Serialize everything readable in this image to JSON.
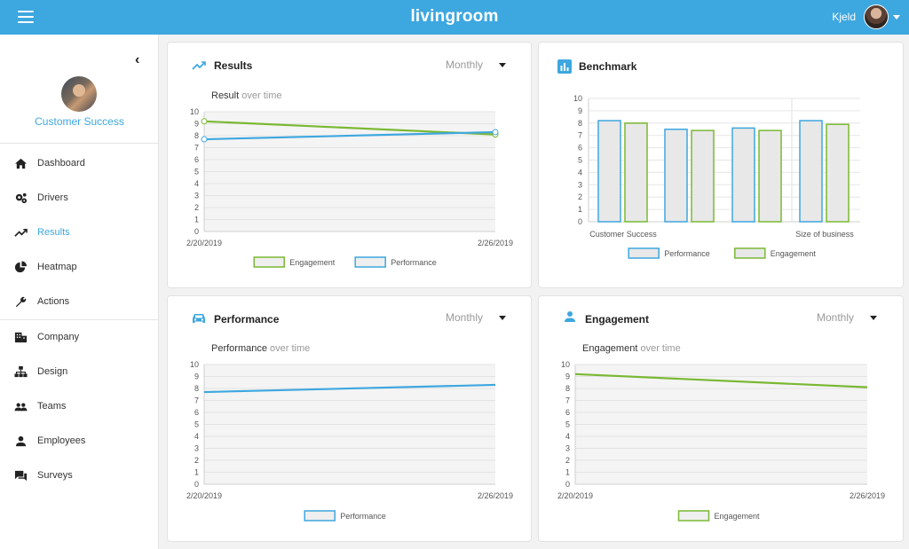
{
  "header": {
    "brand": "livingroom",
    "user_name": "Kjeld"
  },
  "sidebar": {
    "team_name": "Customer Success",
    "items": [
      {
        "label": "Dashboard",
        "icon": "home-icon"
      },
      {
        "label": "Drivers",
        "icon": "gears-icon"
      },
      {
        "label": "Results",
        "icon": "trending-up-icon",
        "active": true
      },
      {
        "label": "Heatmap",
        "icon": "pie-chart-icon"
      },
      {
        "label": "Actions",
        "icon": "wrench-icon"
      },
      {
        "label": "Company",
        "icon": "building-icon"
      },
      {
        "label": "Design",
        "icon": "org-chart-icon"
      },
      {
        "label": "Teams",
        "icon": "people-icon"
      },
      {
        "label": "Employees",
        "icon": "person-icon"
      },
      {
        "label": "Surveys",
        "icon": "chat-icon"
      }
    ]
  },
  "colors": {
    "accent": "#3da7df",
    "performance": "#3da7df",
    "engagement": "#7ab833",
    "plot_fill": "#f4f4f4"
  },
  "cards": {
    "results": {
      "title": "Results",
      "period": "Monthly",
      "subtitle_main": "Result",
      "subtitle_muted": "over time"
    },
    "benchmark": {
      "title": "Benchmark"
    },
    "performance": {
      "title": "Performance",
      "period": "Monthly",
      "subtitle_main": "Performance",
      "subtitle_muted": "over time"
    },
    "engagement": {
      "title": "Engagement",
      "period": "Monthly",
      "subtitle_main": "Engagement",
      "subtitle_muted": "over time"
    }
  },
  "chart_data": [
    {
      "type": "line",
      "x": [
        "2/20/2019",
        "2/26/2019"
      ],
      "series": [
        {
          "name": "Engagement",
          "values": [
            9.2,
            8.1
          ]
        },
        {
          "name": "Performance",
          "values": [
            7.7,
            8.3
          ]
        }
      ],
      "ylim": [
        0,
        10
      ],
      "yticks": [
        0,
        1,
        2,
        3,
        4,
        5,
        6,
        7,
        8,
        9,
        10
      ],
      "legend": [
        "Engagement",
        "Performance"
      ],
      "markers": true
    },
    {
      "type": "bar",
      "categories": [
        "Customer Success",
        "Size of business"
      ],
      "groups": [
        {
          "label": "Customer Success",
          "performance": 8.2,
          "engagement": 8.0
        },
        {
          "label": "",
          "performance": 7.5,
          "engagement": 7.4
        },
        {
          "label": "",
          "performance": 7.6,
          "engagement": 7.4
        },
        {
          "label": "Size of business",
          "performance": 8.2,
          "engagement": 7.9
        }
      ],
      "ylim": [
        0,
        10
      ],
      "yticks": [
        0,
        1,
        2,
        3,
        4,
        5,
        6,
        7,
        8,
        9,
        10
      ],
      "legend": [
        "Performance",
        "Engagement"
      ]
    },
    {
      "type": "line",
      "x": [
        "2/20/2019",
        "2/26/2019"
      ],
      "series": [
        {
          "name": "Performance",
          "values": [
            7.7,
            8.3
          ]
        }
      ],
      "ylim": [
        0,
        10
      ],
      "yticks": [
        0,
        1,
        2,
        3,
        4,
        5,
        6,
        7,
        8,
        9,
        10
      ],
      "legend": [
        "Performance"
      ]
    },
    {
      "type": "line",
      "x": [
        "2/20/2019",
        "2/26/2019"
      ],
      "series": [
        {
          "name": "Engagement",
          "values": [
            9.2,
            8.1
          ]
        }
      ],
      "ylim": [
        0,
        10
      ],
      "yticks": [
        0,
        1,
        2,
        3,
        4,
        5,
        6,
        7,
        8,
        9,
        10
      ],
      "legend": [
        "Engagement"
      ]
    }
  ]
}
